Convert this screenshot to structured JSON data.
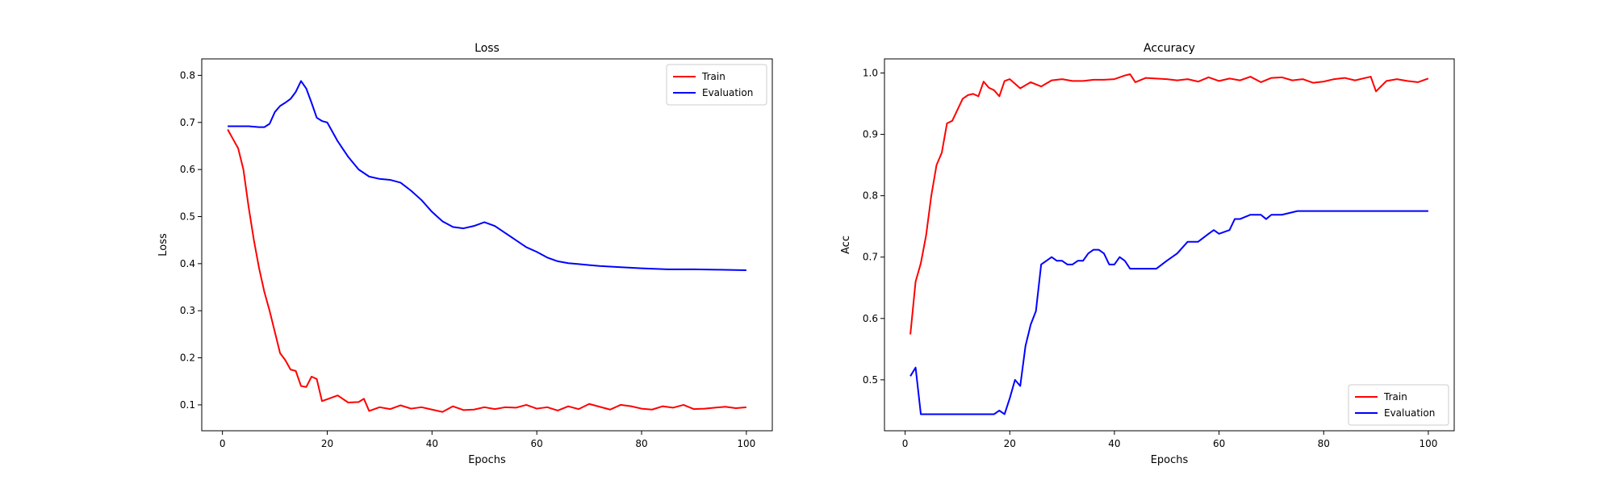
{
  "chart_data": [
    {
      "type": "line",
      "title": "Loss",
      "xlabel": "Epochs",
      "ylabel": "Loss",
      "xlim": [
        -3.95,
        104.95
      ],
      "ylim": [
        0.045,
        0.835
      ],
      "xticks": [
        0,
        20,
        40,
        60,
        80,
        100
      ],
      "yticks": [
        0.1,
        0.2,
        0.3,
        0.4,
        0.5,
        0.6,
        0.7,
        0.8
      ],
      "legend": "top-right",
      "grid": false,
      "series": [
        {
          "name": "Train",
          "color": "#ff0000",
          "x": [
            1,
            2,
            3,
            4,
            5,
            6,
            7,
            8,
            9,
            10,
            11,
            12,
            13,
            14,
            15,
            16,
            17,
            18,
            19,
            20,
            22,
            24,
            26,
            27,
            28,
            30,
            32,
            34,
            36,
            38,
            40,
            42,
            44,
            46,
            48,
            50,
            52,
            54,
            56,
            58,
            60,
            62,
            64,
            66,
            68,
            70,
            72,
            74,
            76,
            78,
            80,
            82,
            84,
            86,
            88,
            90,
            92,
            94,
            96,
            98,
            100
          ],
          "y": [
            0.685,
            0.665,
            0.645,
            0.6,
            0.52,
            0.45,
            0.39,
            0.34,
            0.3,
            0.255,
            0.21,
            0.195,
            0.175,
            0.172,
            0.14,
            0.138,
            0.16,
            0.155,
            0.108,
            0.112,
            0.12,
            0.105,
            0.106,
            0.113,
            0.087,
            0.095,
            0.091,
            0.099,
            0.092,
            0.095,
            0.09,
            0.085,
            0.097,
            0.089,
            0.09,
            0.095,
            0.091,
            0.095,
            0.094,
            0.1,
            0.092,
            0.095,
            0.088,
            0.097,
            0.091,
            0.102,
            0.096,
            0.09,
            0.1,
            0.097,
            0.092,
            0.09,
            0.097,
            0.094,
            0.1,
            0.091,
            0.092,
            0.094,
            0.096,
            0.093,
            0.095
          ]
        },
        {
          "name": "Evaluation",
          "color": "#0000ff",
          "x": [
            1,
            3,
            5,
            7,
            8,
            9,
            10,
            11,
            12,
            13,
            14,
            15,
            16,
            17,
            18,
            19,
            20,
            22,
            24,
            26,
            28,
            30,
            32,
            34,
            36,
            38,
            40,
            42,
            44,
            46,
            48,
            50,
            52,
            54,
            56,
            58,
            60,
            62,
            64,
            66,
            68,
            70,
            72,
            75,
            80,
            85,
            90,
            95,
            100
          ],
          "y": [
            0.692,
            0.692,
            0.692,
            0.69,
            0.69,
            0.697,
            0.722,
            0.735,
            0.742,
            0.75,
            0.765,
            0.788,
            0.772,
            0.742,
            0.71,
            0.703,
            0.7,
            0.66,
            0.627,
            0.6,
            0.585,
            0.58,
            0.578,
            0.572,
            0.555,
            0.535,
            0.51,
            0.49,
            0.478,
            0.475,
            0.48,
            0.488,
            0.48,
            0.465,
            0.45,
            0.435,
            0.425,
            0.413,
            0.405,
            0.401,
            0.399,
            0.397,
            0.395,
            0.393,
            0.39,
            0.388,
            0.388,
            0.387,
            0.386
          ]
        }
      ]
    },
    {
      "type": "line",
      "title": "Accuracy",
      "xlabel": "Epochs",
      "ylabel": "Acc",
      "xlim": [
        -3.95,
        104.95
      ],
      "ylim": [
        0.417,
        1.023
      ],
      "xticks": [
        0,
        20,
        40,
        60,
        80,
        100
      ],
      "yticks": [
        0.5,
        0.6,
        0.7,
        0.8,
        0.9,
        1.0
      ],
      "legend": "bottom-right",
      "grid": false,
      "series": [
        {
          "name": "Train",
          "color": "#ff0000",
          "x": [
            1,
            2,
            3,
            4,
            5,
            6,
            7,
            8,
            9,
            10,
            11,
            12,
            13,
            14,
            15,
            16,
            17,
            18,
            19,
            20,
            22,
            24,
            26,
            28,
            30,
            32,
            34,
            36,
            38,
            40,
            42,
            43,
            44,
            46,
            48,
            50,
            52,
            54,
            56,
            58,
            60,
            62,
            64,
            66,
            68,
            70,
            72,
            74,
            76,
            78,
            80,
            82,
            84,
            86,
            88,
            89,
            90,
            92,
            94,
            96,
            98,
            100
          ],
          "y": [
            0.574,
            0.66,
            0.69,
            0.735,
            0.8,
            0.85,
            0.87,
            0.918,
            0.922,
            0.94,
            0.958,
            0.964,
            0.966,
            0.962,
            0.986,
            0.976,
            0.972,
            0.962,
            0.987,
            0.99,
            0.975,
            0.985,
            0.978,
            0.988,
            0.99,
            0.987,
            0.987,
            0.989,
            0.989,
            0.99,
            0.996,
            0.998,
            0.985,
            0.992,
            0.991,
            0.99,
            0.988,
            0.99,
            0.986,
            0.993,
            0.987,
            0.991,
            0.988,
            0.994,
            0.985,
            0.992,
            0.993,
            0.988,
            0.99,
            0.984,
            0.986,
            0.99,
            0.992,
            0.988,
            0.992,
            0.994,
            0.97,
            0.987,
            0.99,
            0.987,
            0.985,
            0.991
          ]
        },
        {
          "name": "Evaluation",
          "color": "#0000ff",
          "x": [
            1,
            2,
            3,
            4,
            6,
            8,
            10,
            12,
            14,
            16,
            17,
            18,
            19,
            20,
            21,
            22,
            23,
            24,
            25,
            26,
            27,
            28,
            29,
            30,
            31,
            32,
            33,
            34,
            35,
            36,
            37,
            38,
            39,
            40,
            41,
            42,
            43,
            44,
            46,
            48,
            50,
            52,
            54,
            56,
            58,
            59,
            60,
            62,
            63,
            64,
            66,
            68,
            69,
            70,
            72,
            75,
            80,
            85,
            90,
            95,
            100
          ],
          "y": [
            0.506,
            0.52,
            0.444,
            0.444,
            0.444,
            0.444,
            0.444,
            0.444,
            0.444,
            0.444,
            0.444,
            0.45,
            0.444,
            0.47,
            0.5,
            0.49,
            0.555,
            0.59,
            0.612,
            0.688,
            0.694,
            0.7,
            0.694,
            0.694,
            0.688,
            0.688,
            0.694,
            0.694,
            0.706,
            0.712,
            0.712,
            0.706,
            0.688,
            0.688,
            0.7,
            0.694,
            0.681,
            0.681,
            0.681,
            0.681,
            0.694,
            0.706,
            0.725,
            0.725,
            0.738,
            0.744,
            0.738,
            0.744,
            0.762,
            0.762,
            0.769,
            0.769,
            0.762,
            0.769,
            0.769,
            0.775,
            0.775,
            0.775,
            0.775,
            0.775,
            0.775
          ]
        }
      ]
    }
  ]
}
